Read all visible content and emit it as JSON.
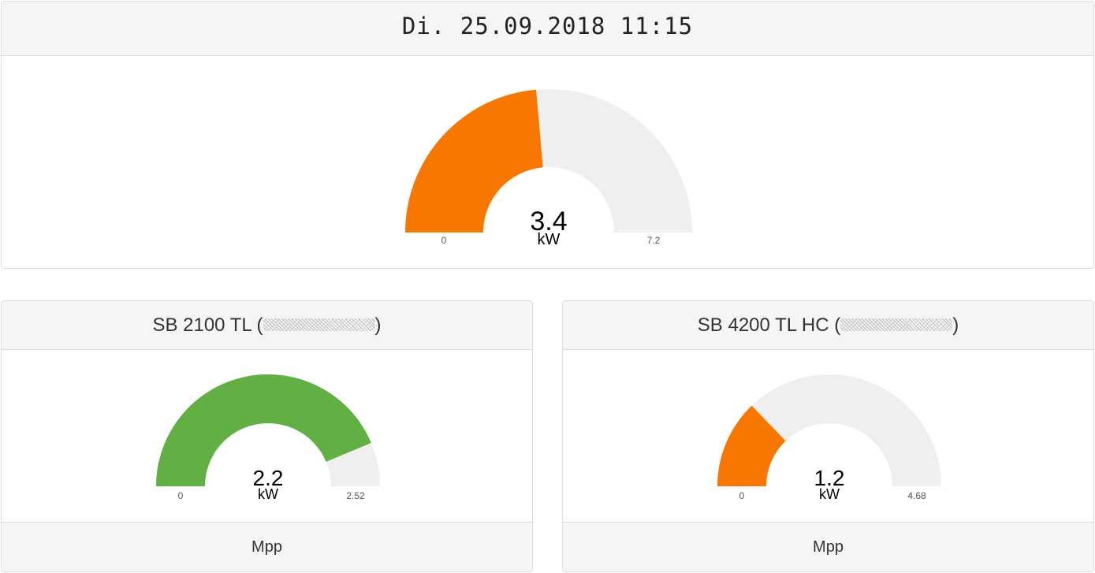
{
  "header": {
    "datetime": "Di. 25.09.2018 11:15"
  },
  "total": {
    "value": "3.4",
    "unit": "kW",
    "min": "0",
    "max": "7.2",
    "fraction": 0.472,
    "color": "#f77700"
  },
  "inverters": [
    {
      "name": "SB 2100 TL (",
      "suffix": ")",
      "value": "2.2",
      "unit": "kW",
      "min": "0",
      "max": "2.52",
      "fraction": 0.873,
      "color": "#62b043",
      "footer": "Mpp"
    },
    {
      "name": "SB 4200 TL HC (",
      "suffix": ")",
      "value": "1.2",
      "unit": "kW",
      "min": "0",
      "max": "4.68",
      "fraction": 0.256,
      "color": "#f77700",
      "footer": "Mpp"
    }
  ],
  "gauge_track_color": "#efefef"
}
